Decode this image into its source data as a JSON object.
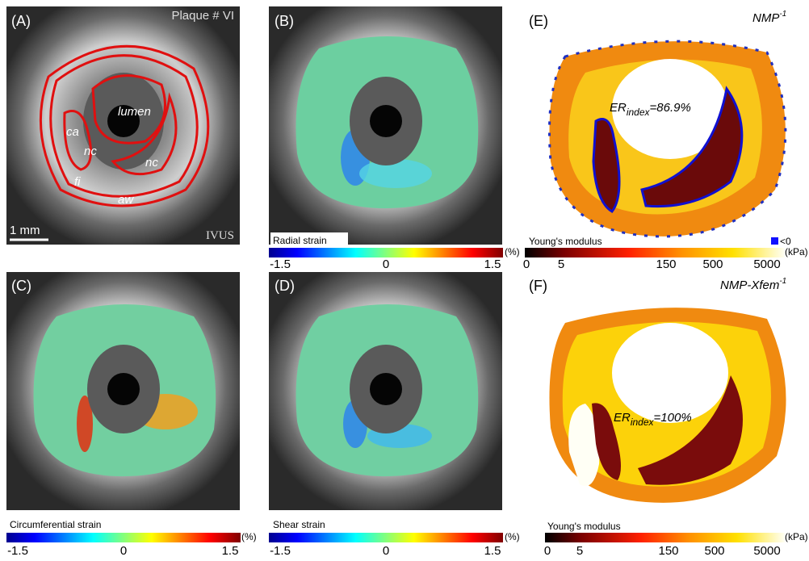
{
  "panels": [
    {
      "label": "(A)",
      "title": "Plaque # VI",
      "regions": [
        "lumen",
        "ca",
        "nc",
        "nc",
        "fi",
        "aw"
      ],
      "scale_bar": "1 mm",
      "modality": "IVUS"
    },
    {
      "label": "(B)",
      "colorbar": {
        "title": "Radial strain",
        "ticks": [
          "-1.5",
          "0",
          "1.5"
        ],
        "unit": "(%)"
      }
    },
    {
      "label": "(E)",
      "title": {
        "text": "NMP",
        "sup": "-1"
      },
      "er": {
        "text": "ER",
        "sub": "index",
        "value": "=86.9%"
      },
      "colorbar": {
        "title": "Young's modulus",
        "ticks": [
          "0",
          "5",
          "150",
          "500",
          "5000"
        ],
        "unit": "(kPa)",
        "negative": "<0"
      }
    },
    {
      "label": "(C)",
      "colorbar": {
        "title": "Circumferential strain",
        "ticks": [
          "-1.5",
          "0",
          "1.5"
        ],
        "unit": "(%)"
      }
    },
    {
      "label": "(D)",
      "colorbar": {
        "title": "Shear strain",
        "ticks": [
          "-1.5",
          "0",
          "1.5"
        ],
        "unit": "(%)"
      }
    },
    {
      "label": "(F)",
      "title": {
        "text": "NMP-Xfem",
        "sup": "-1"
      },
      "er": {
        "text": "ER",
        "sub": "index",
        "value": "=100%"
      },
      "colorbar": {
        "title": "Young's modulus",
        "ticks": [
          "0",
          "5",
          "150",
          "500",
          "5000"
        ],
        "unit": "(kPa)"
      }
    }
  ]
}
